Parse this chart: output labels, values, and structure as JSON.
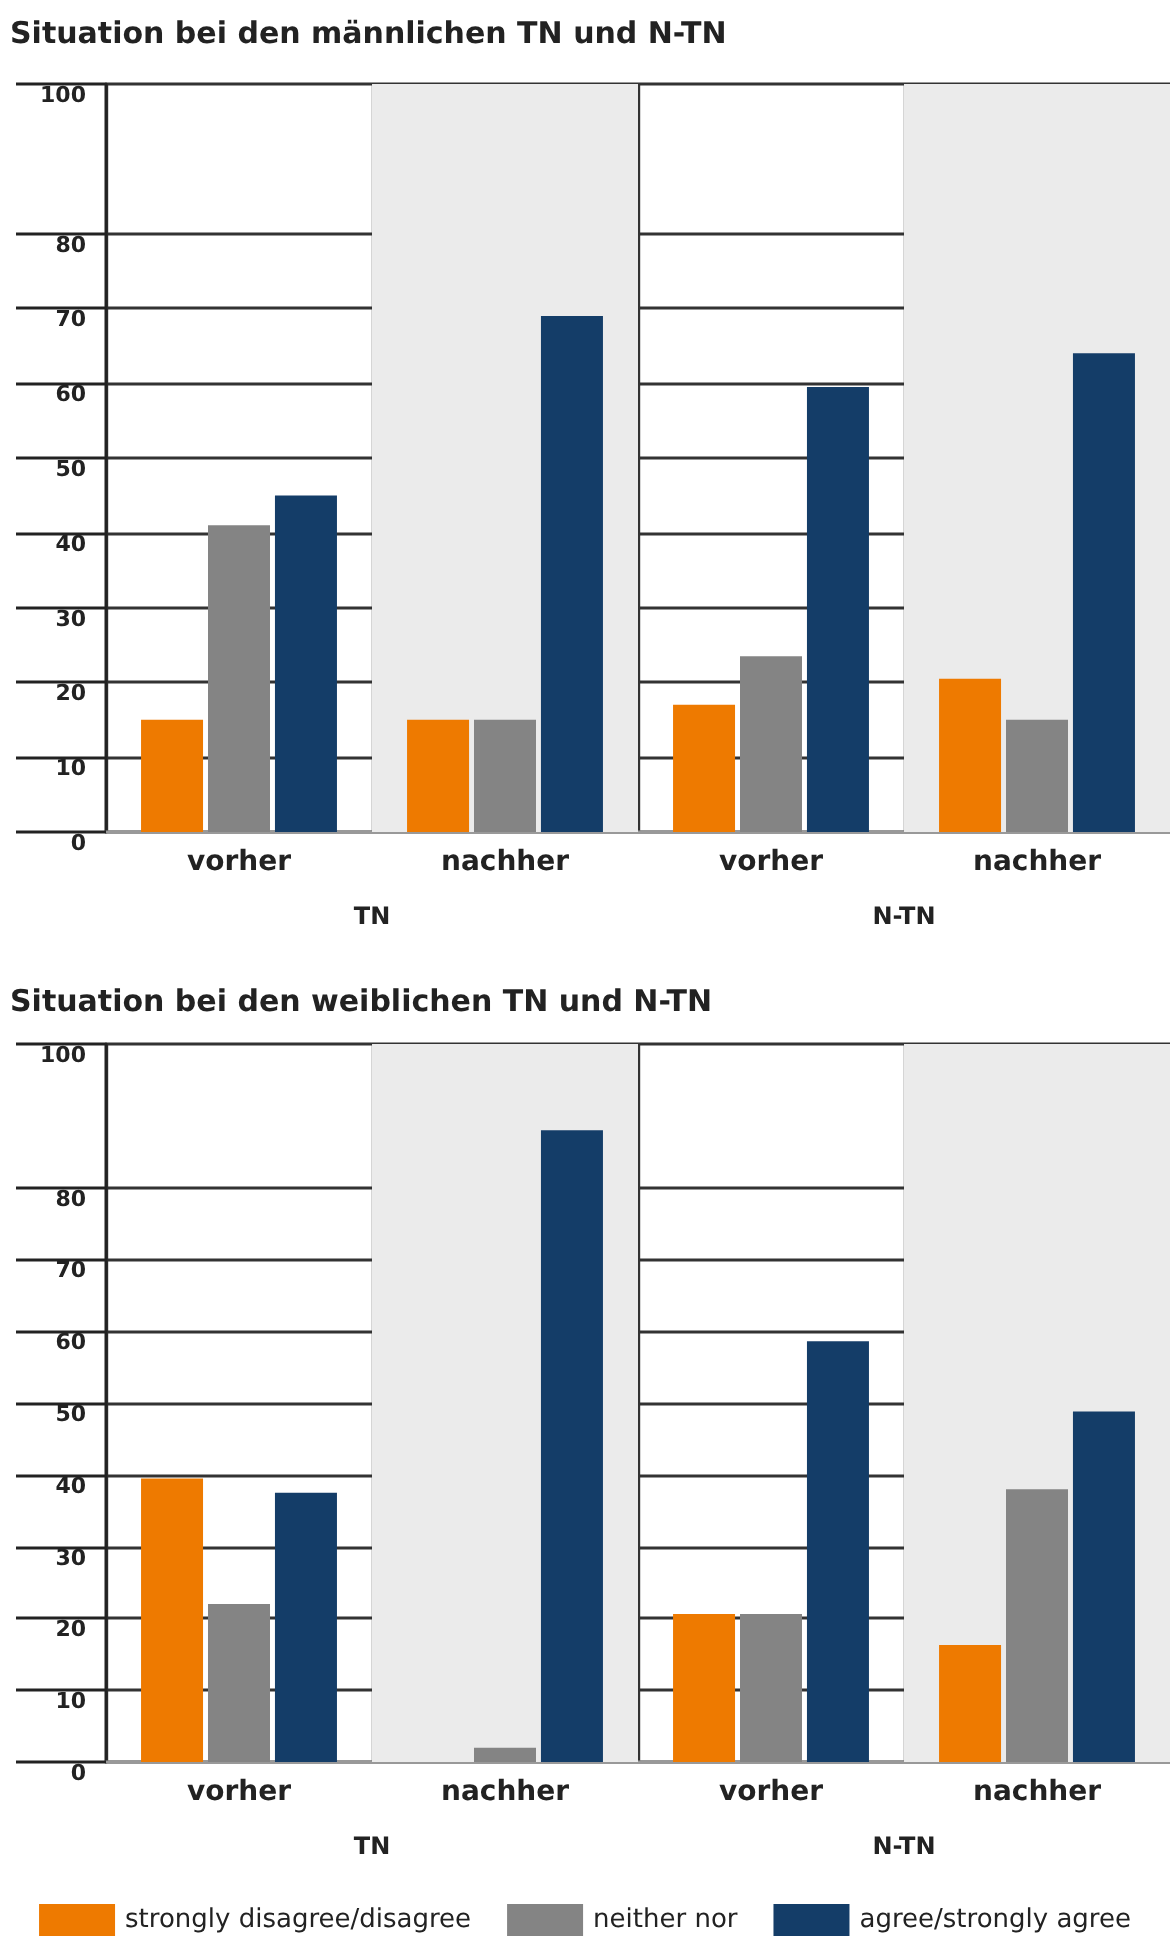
{
  "chart_data": [
    {
      "type": "bar",
      "title": "Situation bei den männlichen TN und N-TN",
      "categories": [
        "vorher",
        "nachher",
        "vorher",
        "nachher"
      ],
      "annotations": [
        "TN",
        "N-TN"
      ],
      "series": [
        {
          "color": "#ee7a00",
          "values": [
            15,
            15,
            17,
            20.5
          ]
        },
        {
          "color": "#848484",
          "values": [
            41,
            15,
            23.5,
            15
          ]
        },
        {
          "color": "#143d68",
          "values": [
            45,
            69,
            59.5,
            64
          ]
        }
      ],
      "ylim": [
        0,
        100
      ],
      "yticks": [
        0,
        10,
        20,
        30,
        40,
        50,
        60,
        70,
        80,
        100
      ],
      "grid": true,
      "legend": false
    },
    {
      "type": "bar",
      "title": "Situation bei den weiblichen TN und N-TN",
      "categories": [
        "vorher",
        "nachher",
        "vorher",
        "nachher"
      ],
      "annotations": [
        "TN",
        "N-TN"
      ],
      "series": [
        {
          "name": "strongly disagree/disagree",
          "color": "#ee7a00",
          "values": [
            39.5,
            0,
            20.6,
            16.3
          ]
        },
        {
          "name": "neither nor",
          "color": "#848484",
          "values": [
            22,
            2,
            20.6,
            38
          ]
        },
        {
          "name": "agree/strongly agree",
          "color": "#143d68",
          "values": [
            37.5,
            88,
            58.6,
            48.8
          ]
        }
      ],
      "ylim": [
        0,
        100
      ],
      "yticks": [
        0,
        10,
        20,
        30,
        40,
        50,
        60,
        70,
        80,
        100
      ],
      "grid": true,
      "legend": "bottom"
    }
  ]
}
